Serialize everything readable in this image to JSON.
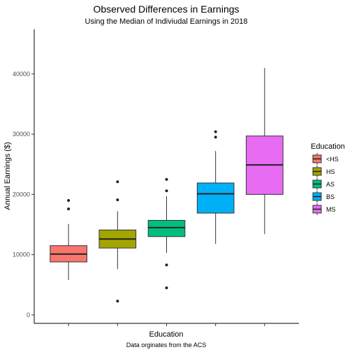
{
  "chart_data": {
    "type": "box",
    "title": "Observed Differences in Earnings",
    "subtitle": "Using the Median of Indiviudal Earnings in 2018",
    "xlabel": "Education",
    "ylabel": "Annual Earnings ($)",
    "caption": "Data orginates from the ACS",
    "ylim": [
      -1400,
      47400
    ],
    "y_ticks": [
      0,
      10000,
      20000,
      30000,
      40000
    ],
    "grid": false,
    "legend": {
      "title": "Education",
      "position": "right",
      "items": [
        "<HS",
        "HS",
        "AS",
        "BS",
        "MS"
      ]
    },
    "categories": [
      "<HS",
      "HS",
      "AS",
      "BS",
      "MS"
    ],
    "boxes": [
      {
        "name": "<HS",
        "color": "#F8766D",
        "whisker_low": 5800,
        "q1": 8800,
        "median": 10100,
        "q3": 11500,
        "whisker_high": 15100,
        "outliers": [
          17600,
          19000
        ]
      },
      {
        "name": "HS",
        "color": "#A3A500",
        "whisker_low": 7600,
        "q1": 11100,
        "median": 12600,
        "q3": 14100,
        "whisker_high": 17200,
        "outliers": [
          19100,
          22100,
          2300
        ]
      },
      {
        "name": "AS",
        "color": "#00BF7D",
        "whisker_low": 10300,
        "q1": 13000,
        "median": 14500,
        "q3": 15700,
        "whisker_high": 19700,
        "outliers": [
          20600,
          22500,
          8300,
          4500
        ]
      },
      {
        "name": "BS",
        "color": "#00B0F6",
        "whisker_low": 11800,
        "q1": 16900,
        "median": 20100,
        "q3": 21900,
        "whisker_high": 27200,
        "outliers": [
          29500,
          30400
        ]
      },
      {
        "name": "MS",
        "color": "#E76BF3",
        "whisker_low": 13400,
        "q1": 20000,
        "median": 24900,
        "q3": 29700,
        "whisker_high": 41000,
        "outliers": []
      }
    ]
  }
}
